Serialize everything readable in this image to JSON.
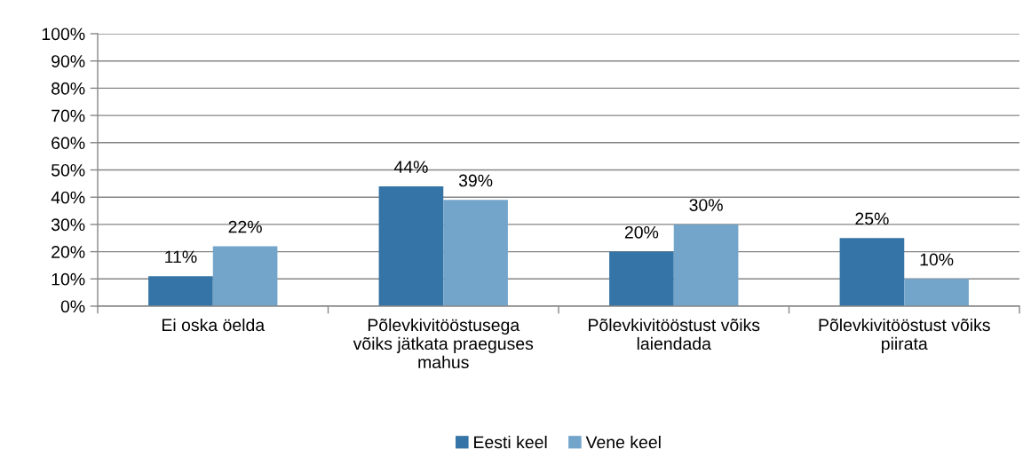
{
  "chart_data": {
    "type": "bar",
    "categories": [
      "Ei oska öelda",
      "Põlevkivitööstusega võiks jätkata praeguses mahus",
      "Põlevkivitööstust võiks laiendada",
      "Põlevkivitööstust võiks piirata"
    ],
    "series": [
      {
        "name": "Eesti keel",
        "color": "#3574a6",
        "values": [
          11,
          44,
          20,
          25
        ],
        "value_labels": [
          "11%",
          "44%",
          "20%",
          "25%"
        ]
      },
      {
        "name": "Vene keel",
        "color": "#73a5cb",
        "values": [
          22,
          39,
          30,
          10
        ],
        "value_labels": [
          "22%",
          "39%",
          "30%",
          "10%"
        ]
      }
    ],
    "ylim": [
      0,
      100
    ],
    "yticks": [
      {
        "value": 0,
        "label": "0%"
      },
      {
        "value": 10,
        "label": "10%"
      },
      {
        "value": 20,
        "label": "20%"
      },
      {
        "value": 30,
        "label": "30%"
      },
      {
        "value": 40,
        "label": "40%"
      },
      {
        "value": 50,
        "label": "50%"
      },
      {
        "value": 60,
        "label": "60%"
      },
      {
        "value": 70,
        "label": "70%"
      },
      {
        "value": 80,
        "label": "80%"
      },
      {
        "value": 90,
        "label": "90%"
      },
      {
        "value": 100,
        "label": "100%"
      }
    ],
    "grid": "y",
    "legend": "bottom"
  }
}
